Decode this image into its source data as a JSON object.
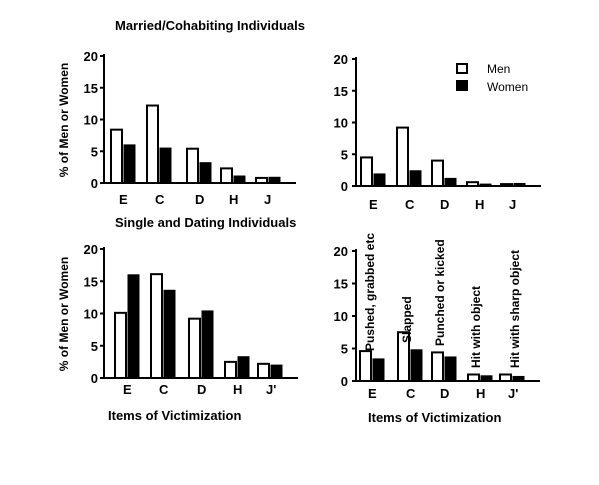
{
  "titles": {
    "married": "Married/Cohabiting Individuals",
    "single": "Single and Dating Individuals"
  },
  "ylabel": "% of Men or Women",
  "xlabel": "Items of Victimization",
  "legend": {
    "men": "Men",
    "women": "Women"
  },
  "annotations": [
    "Pushed, grabbed etc",
    "Slapped",
    "Punched or kicked",
    "Hit with object",
    "Hit with sharp object"
  ],
  "colors": {
    "men": "#ffffff",
    "women": "#000000",
    "axis": "#000000"
  },
  "chart_data": [
    {
      "type": "bar",
      "title": "Married/Cohabiting Individuals",
      "ylabel": "% of Men or Women",
      "xlabel": "",
      "ylim": [
        0,
        20
      ],
      "yticks": [
        0,
        5,
        10,
        15,
        20
      ],
      "categories": [
        "E",
        "C",
        "D",
        "H",
        "J"
      ],
      "series": [
        {
          "name": "Men",
          "values": [
            8.4,
            12.2,
            5.4,
            2.3,
            0.8
          ]
        },
        {
          "name": "Women",
          "values": [
            6.0,
            5.5,
            3.2,
            1.1,
            0.9
          ]
        }
      ]
    },
    {
      "type": "bar",
      "title": "",
      "ylabel": "",
      "xlabel": "",
      "ylim": [
        0,
        20
      ],
      "yticks": [
        0,
        5,
        10,
        15,
        20
      ],
      "categories": [
        "E",
        "C",
        "D",
        "H",
        "J"
      ],
      "series": [
        {
          "name": "Men",
          "values": [
            4.5,
            9.2,
            4.0,
            0.6,
            0.3
          ]
        },
        {
          "name": "Women",
          "values": [
            1.9,
            2.4,
            1.2,
            0.3,
            0.4
          ]
        }
      ],
      "legend": "top-right"
    },
    {
      "type": "bar",
      "title": "Single and Dating Individuals",
      "ylabel": "% of Men or Women",
      "xlabel": "Items of Victimization",
      "ylim": [
        0,
        20
      ],
      "yticks": [
        0,
        5,
        10,
        15,
        20
      ],
      "categories": [
        "E",
        "C",
        "D",
        "H",
        "J'"
      ],
      "series": [
        {
          "name": "Men",
          "values": [
            10.1,
            16.1,
            9.2,
            2.5,
            2.2
          ]
        },
        {
          "name": "Women",
          "values": [
            16.0,
            13.6,
            10.4,
            3.3,
            2.0
          ]
        }
      ]
    },
    {
      "type": "bar",
      "title": "",
      "ylabel": "",
      "xlabel": "Items of Victimization",
      "ylim": [
        0,
        20
      ],
      "yticks": [
        0,
        5,
        10,
        15,
        20
      ],
      "categories": [
        "E",
        "C",
        "D",
        "H",
        "J'"
      ],
      "series": [
        {
          "name": "Men",
          "values": [
            4.6,
            7.5,
            4.4,
            1.0,
            1.0
          ]
        },
        {
          "name": "Women",
          "values": [
            3.4,
            4.8,
            3.7,
            0.8,
            0.7
          ]
        }
      ]
    }
  ]
}
